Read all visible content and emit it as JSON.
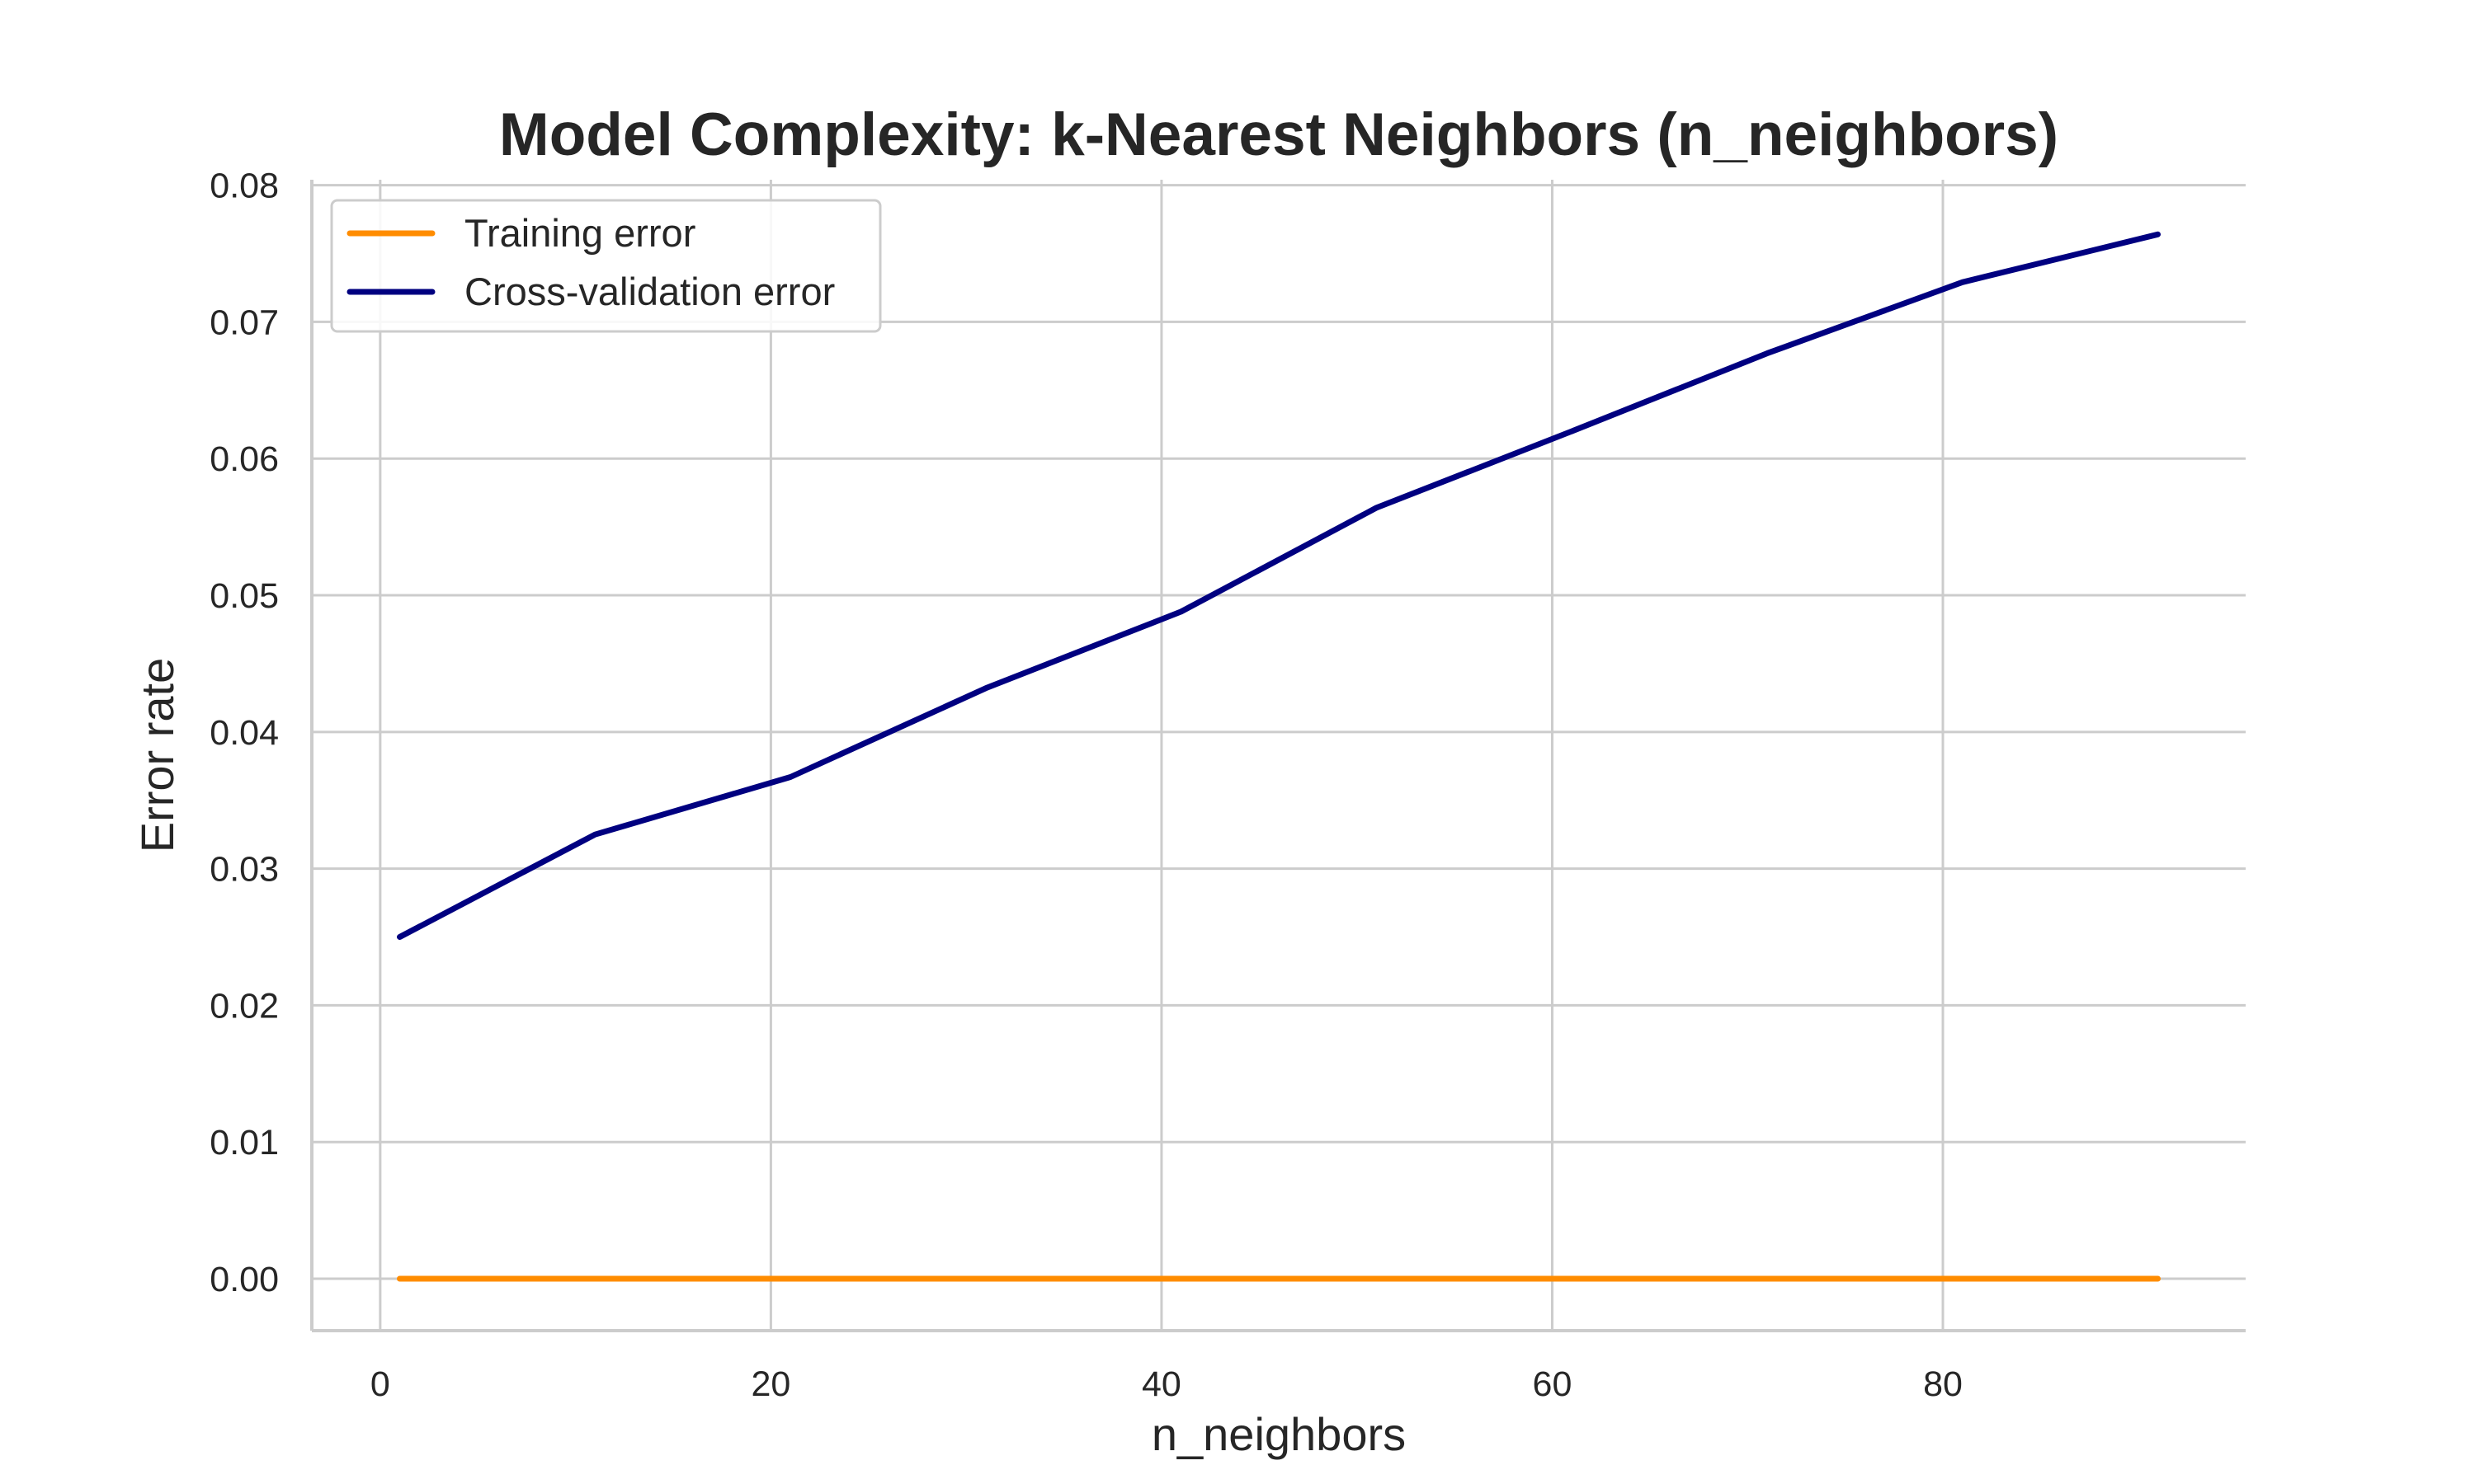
{
  "chart_data": {
    "type": "line",
    "title": "Model Complexity: k-Nearest Neighbors (n_neighbors)",
    "xlabel": "n_neighbors",
    "ylabel": "Error rate",
    "xlim": [
      -3.5,
      95.5
    ],
    "ylim": [
      -0.0038,
      0.0804
    ],
    "x_ticks": [
      0,
      20,
      40,
      60,
      80
    ],
    "x_tick_labels": [
      "0",
      "20",
      "40",
      "60",
      "80"
    ],
    "y_ticks": [
      0.0,
      0.01,
      0.02,
      0.03,
      0.04,
      0.05,
      0.06,
      0.07,
      0.08
    ],
    "y_tick_labels": [
      "0.00",
      "0.01",
      "0.02",
      "0.03",
      "0.04",
      "0.05",
      "0.06",
      "0.07",
      "0.08"
    ],
    "grid": true,
    "legend_position": "top-left",
    "x": [
      1,
      11,
      21,
      31,
      41,
      51,
      61,
      71,
      81,
      91
    ],
    "series": [
      {
        "name": "Training error",
        "color": "#ff8c00",
        "values": [
          0,
          0,
          0,
          0,
          0,
          0,
          0,
          0,
          0,
          0
        ]
      },
      {
        "name": "Cross-validation error",
        "color": "#000080",
        "values": [
          0.025,
          0.0325,
          0.0367,
          0.0432,
          0.0488,
          0.0564,
          0.062,
          0.0677,
          0.0729,
          0.0764
        ]
      }
    ]
  }
}
